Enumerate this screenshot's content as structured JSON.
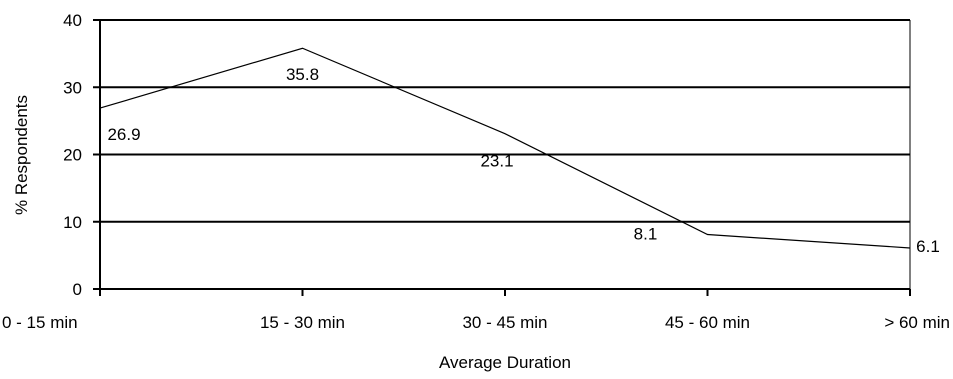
{
  "chart_data": {
    "type": "line",
    "title": "",
    "xlabel": "Average Duration",
    "ylabel": "% Respondents",
    "categories": [
      "0 - 15 min",
      "15 - 30 min",
      "30 - 45 min",
      "45 - 60 min",
      "> 60 min"
    ],
    "series": [
      {
        "values": [
          26.9,
          35.8,
          23.1,
          8.1,
          6.1
        ]
      }
    ],
    "data_labels": [
      "26.9",
      "35.8",
      "23.1",
      "8.1",
      "6.1"
    ],
    "ylim": [
      0,
      40
    ],
    "yticks": [
      "0",
      "10",
      "20",
      "30",
      "40"
    ],
    "grid": true,
    "legend": "none",
    "colors": {
      "line": "#000000",
      "grid": "#000000",
      "background": "#ffffff"
    }
  }
}
